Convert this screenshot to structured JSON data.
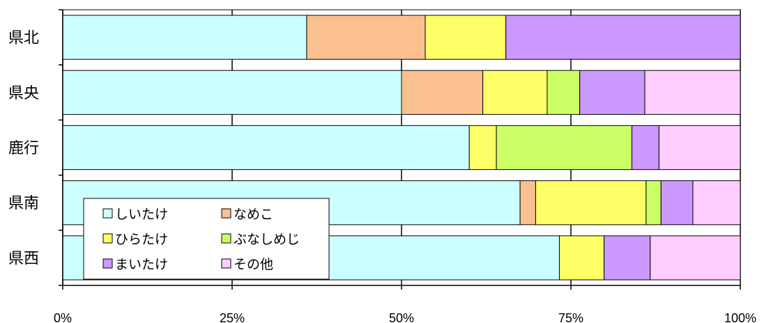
{
  "chart_data": {
    "type": "bar",
    "orientation": "horizontal",
    "stacked": true,
    "normalized": true,
    "categories": [
      "県北",
      "県央",
      "鹿行",
      "県南",
      "県西"
    ],
    "x_ticks": [
      "0%",
      "25%",
      "50%",
      "75%",
      "100%"
    ],
    "xlim": [
      0,
      100
    ],
    "grid": "vertical",
    "legend_position": "bottom-left",
    "series": [
      {
        "name": "しいたけ",
        "color": "#CCFFFF",
        "values": [
          36,
          50,
          60,
          67.5,
          73.3
        ]
      },
      {
        "name": "なめこ",
        "color": "#FAC090",
        "values": [
          17.5,
          12,
          0,
          2.3,
          0
        ]
      },
      {
        "name": "ひらたけ",
        "color": "#FFFF66",
        "values": [
          11.9,
          9.5,
          4,
          16.3,
          6.6
        ]
      },
      {
        "name": "ぶなしめじ",
        "color": "#CCFF66",
        "values": [
          0,
          4.8,
          20,
          2.2,
          0
        ]
      },
      {
        "name": "まいたけ",
        "color": "#CC99FF",
        "values": [
          34.6,
          9.6,
          4,
          4.7,
          6.8
        ]
      },
      {
        "name": "その他",
        "color": "#FFCCFF",
        "values": [
          0,
          14.1,
          12,
          7,
          13.3
        ]
      }
    ]
  }
}
